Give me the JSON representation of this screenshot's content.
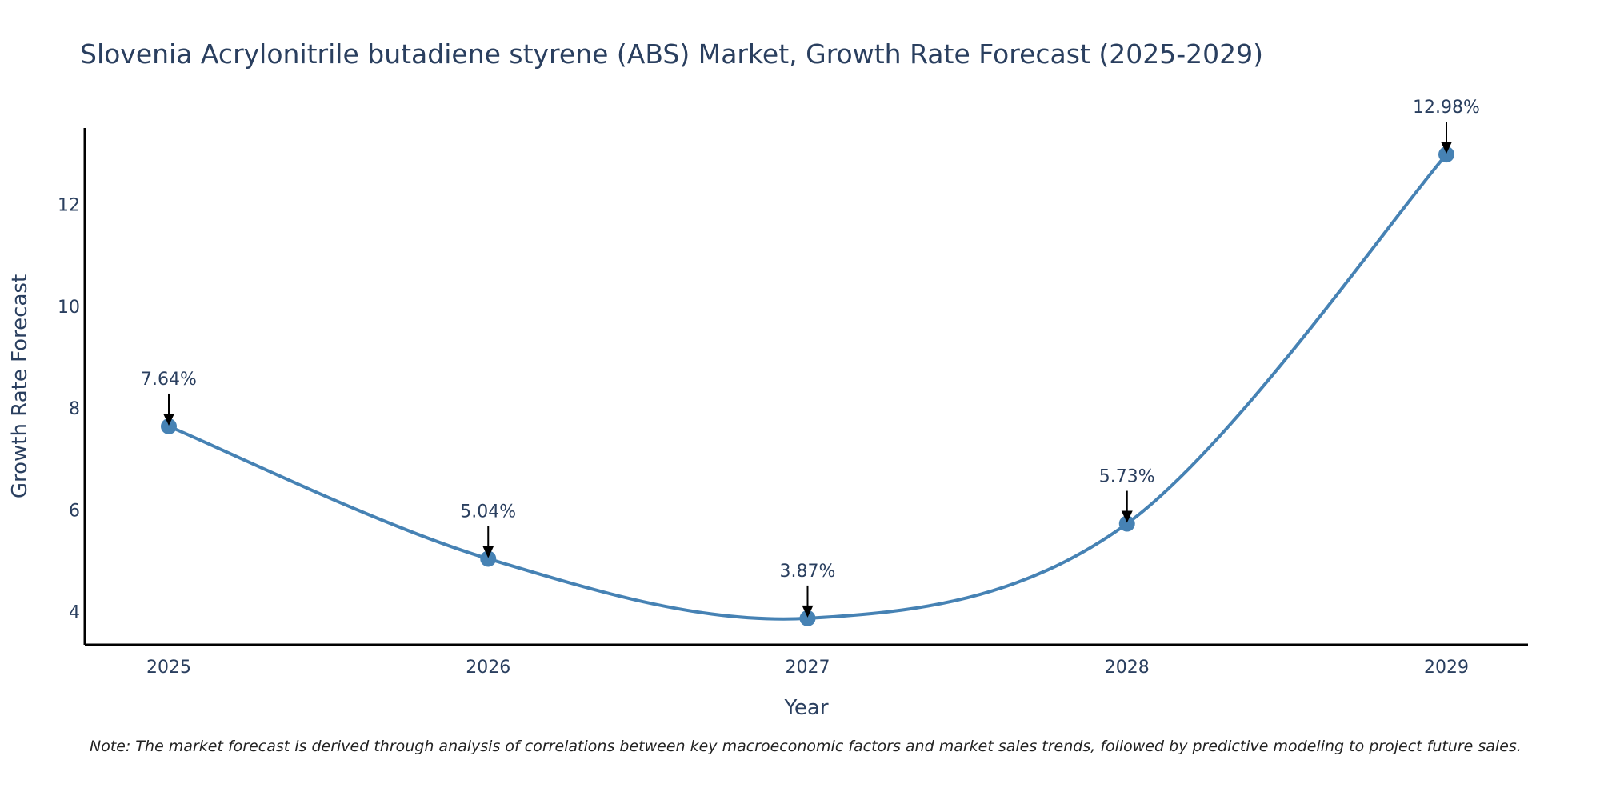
{
  "chart_data": {
    "type": "line",
    "title": "Slovenia Acrylonitrile butadiene styrene (ABS) Market, Growth Rate Forecast (2025-2029)",
    "xlabel": "Year",
    "ylabel": "Growth Rate Forecast",
    "categories": [
      "2025",
      "2026",
      "2027",
      "2028",
      "2029"
    ],
    "values": [
      7.64,
      5.04,
      3.87,
      5.73,
      12.98
    ],
    "data_labels": [
      "7.64%",
      "5.04%",
      "3.87%",
      "5.73%",
      "12.98%"
    ],
    "yticks": [
      4,
      6,
      8,
      10,
      12
    ],
    "ylim": [
      3.35,
      13.5
    ],
    "grid": false,
    "line_shape": "spline",
    "colors": {
      "line": "#4682b4",
      "marker": "#4682b4",
      "axis": "#000000",
      "arrow": "#000000"
    }
  },
  "note": "Note: The market forecast is derived through analysis of correlations between key macroeconomic factors and market sales trends, followed by predictive modeling to project future sales."
}
